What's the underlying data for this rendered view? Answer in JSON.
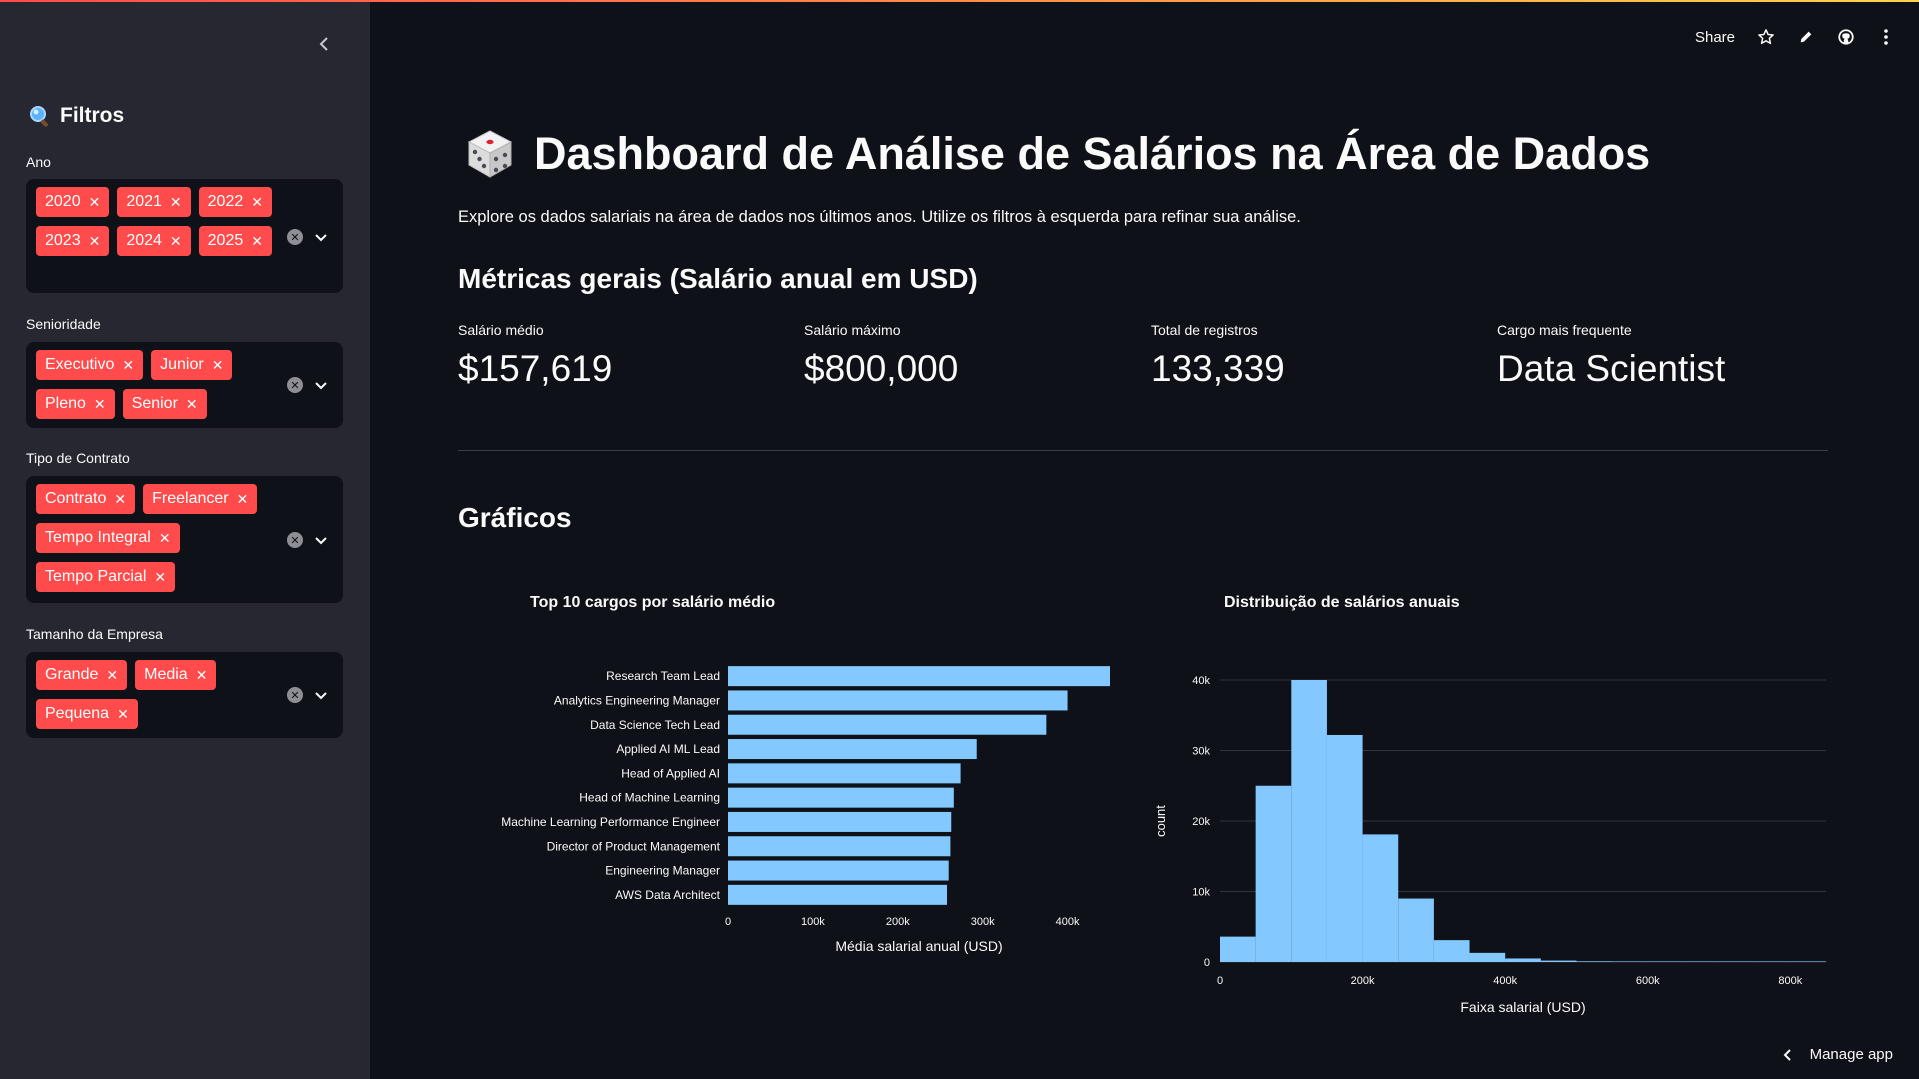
{
  "toolbar": {
    "share_label": "Share"
  },
  "sidebar": {
    "title": "Filtros",
    "filters": [
      {
        "label": "Ano",
        "tags": [
          "2020",
          "2021",
          "2022",
          "2023",
          "2024",
          "2025"
        ]
      },
      {
        "label": "Senioridade",
        "tags": [
          "Executivo",
          "Junior",
          "Pleno",
          "Senior"
        ]
      },
      {
        "label": "Tipo de Contrato",
        "tags": [
          "Contrato",
          "Freelancer",
          "Tempo Integral",
          "Tempo Parcial"
        ]
      },
      {
        "label": "Tamanho da Empresa",
        "tags": [
          "Grande",
          "Media",
          "Pequena"
        ]
      }
    ]
  },
  "main": {
    "title": "Dashboard de Análise de Salários na Área de Dados",
    "subtitle": "Explore os dados salariais na área de dados nos últimos anos. Utilize os filtros à esquerda para refinar sua análise.",
    "metrics_heading": "Métricas gerais (Salário anual em USD)",
    "metrics": [
      {
        "label": "Salário médio",
        "value": "$157,619"
      },
      {
        "label": "Salário máximo",
        "value": "$800,000"
      },
      {
        "label": "Total de registros",
        "value": "133,339"
      },
      {
        "label": "Cargo mais frequente",
        "value": "Data Scientist"
      }
    ],
    "charts_heading": "Gráficos"
  },
  "chart_data": [
    {
      "type": "bar",
      "orientation": "horizontal",
      "title": "Top 10 cargos por salário médio",
      "xlabel": "Média salarial anual (USD)",
      "ylabel": "",
      "color": "#83c9ff",
      "categories": [
        "Research Team Lead",
        "Analytics Engineering Manager",
        "Data Science Tech Lead",
        "Applied AI ML Lead",
        "Head of Applied AI",
        "Head of Machine Learning",
        "Machine Learning Performance Engineer",
        "Director of Product Management",
        "Engineering Manager",
        "AWS Data Architect"
      ],
      "values": [
        450000,
        400000,
        375000,
        293000,
        274000,
        266000,
        263000,
        262000,
        260000,
        258000
      ],
      "xlim": [
        0,
        450000
      ],
      "xticks": [
        0,
        100000,
        200000,
        300000,
        400000
      ],
      "xtick_labels": [
        "0",
        "100k",
        "200k",
        "300k",
        "400k"
      ]
    },
    {
      "type": "bar",
      "subtype": "histogram",
      "title": "Distribuição de salários anuais",
      "xlabel": "Faixa salarial (USD)",
      "ylabel": "count",
      "color": "#83c9ff",
      "grid": true,
      "bin_edges": [
        0,
        50000,
        100000,
        150000,
        200000,
        250000,
        300000,
        350000,
        400000,
        450000,
        500000,
        550000,
        600000,
        650000,
        700000,
        750000,
        800000,
        850000
      ],
      "counts": [
        3600,
        25000,
        40000,
        32200,
        18100,
        9000,
        3100,
        1300,
        500,
        200,
        100,
        50,
        30,
        20,
        10,
        10,
        10
      ],
      "xlim": [
        0,
        850000
      ],
      "ylim": [
        0,
        40000
      ],
      "xticks": [
        0,
        200000,
        400000,
        600000,
        800000
      ],
      "xtick_labels": [
        "0",
        "200k",
        "400k",
        "600k",
        "800k"
      ],
      "yticks": [
        0,
        10000,
        20000,
        30000,
        40000
      ],
      "ytick_labels": [
        "0",
        "10k",
        "20k",
        "30k",
        "40k"
      ]
    }
  ],
  "footer": {
    "manage_label": "Manage app"
  }
}
